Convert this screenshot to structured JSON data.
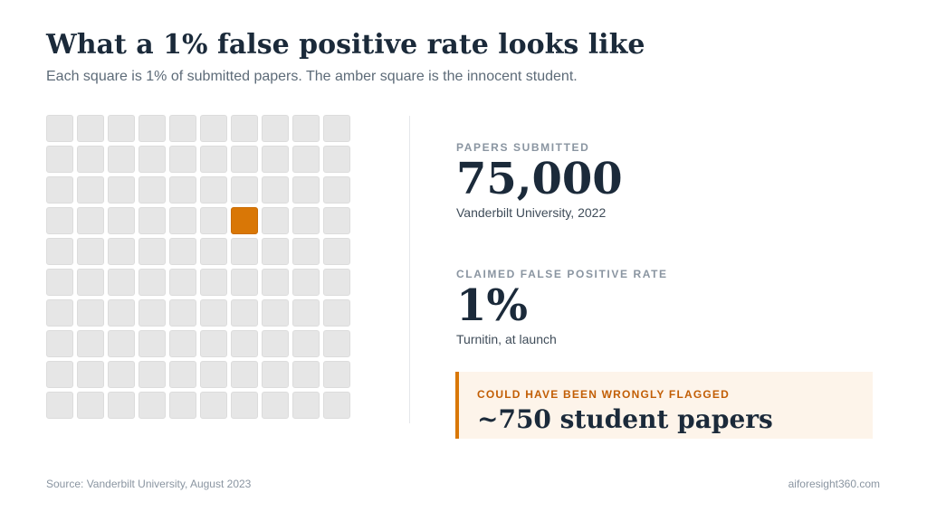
{
  "header": {
    "title": "What a 1% false positive rate looks like",
    "subtitle": "Each square is 1% of submitted papers. The amber square is the innocent student."
  },
  "chart_data": {
    "type": "waffle",
    "rows": 10,
    "columns": 10,
    "total_cells": 100,
    "unit_percent": 1,
    "highlighted_cells": [
      36
    ],
    "highlighted_percent": 1,
    "colors": {
      "base": "#e6e6e6",
      "highlight": "#d97706"
    }
  },
  "stats": [
    {
      "label": "PAPERS SUBMITTED",
      "value": "75,000",
      "note": "Vanderbilt University, 2022"
    },
    {
      "label": "CLAIMED FALSE POSITIVE RATE",
      "value": "1%",
      "note": "Turnitin, at launch"
    }
  ],
  "callout": {
    "label": "COULD HAVE BEEN WRONGLY FLAGGED",
    "value": "~750 student papers",
    "accent_color": "#d97706"
  },
  "footer": {
    "source": "Source: Vanderbilt University, August 2023",
    "brand": "aiforesight360.com"
  }
}
